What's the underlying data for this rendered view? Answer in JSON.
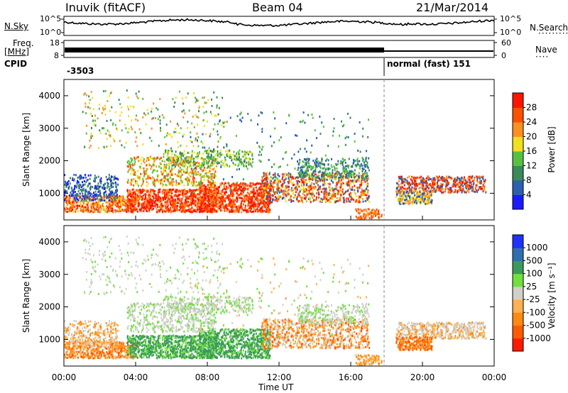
{
  "header": {
    "station": "Inuvik (fitACF)",
    "beam": "Beam 04",
    "date": "21/Mar/2014"
  },
  "left_labels": {
    "nsky": "N.Sky",
    "freq": "Freq.",
    "freq_unit": "[MHz]",
    "cpid": "CPID"
  },
  "right_labels": {
    "nsearch": "N.Search",
    "nave": "Nave"
  },
  "cpid_text": {
    "left": "-3503",
    "right": "normal (fast) 151"
  },
  "colors": {
    "power_scale": [
      "#1a1aff",
      "#2b5fb0",
      "#3a8a5a",
      "#58c040",
      "#f0e020",
      "#ff9020",
      "#ff5000",
      "#ff1500"
    ],
    "velocity_scale": [
      "#ff1a00",
      "#ff5a00",
      "#ff8a10",
      "#ffb050",
      "#d0d0c8",
      "#70e040",
      "#3a9a5a",
      "#2f6fb0",
      "#2030ff"
    ]
  },
  "chart_data": [
    {
      "type": "line",
      "name": "noise",
      "ylabels": [
        "10^5",
        "10^0"
      ],
      "right_ylabels": [
        "10^5",
        "10^0"
      ],
      "left_label": "N.Sky",
      "right_label": "N.Search"
    },
    {
      "type": "line",
      "name": "frequency",
      "left_ticks": [
        "18",
        "8"
      ],
      "right_ticks": [
        "60",
        "0"
      ],
      "freq_mhz": 10.8
    },
    {
      "type": "heatmap",
      "name": "power",
      "ylabel": "Slant Range [km]",
      "y_ticks": [
        1000,
        2000,
        3000,
        4000
      ],
      "x_ticks": [
        "00:00",
        "04:00",
        "08:00",
        "12:00",
        "16:00",
        "20:00",
        "00:00"
      ],
      "colorbar_label": "Power [dB]",
      "colorbar_ticks": [
        "4",
        "8",
        "12",
        "16",
        "20",
        "24",
        "28"
      ],
      "xlim": [
        0,
        24
      ],
      "ylim": [
        180,
        4500
      ]
    },
    {
      "type": "heatmap",
      "name": "velocity",
      "ylabel": "Slant Range [km]",
      "y_ticks": [
        1000,
        2000,
        3000,
        4000
      ],
      "x_ticks": [
        "00:00",
        "04:00",
        "08:00",
        "12:00",
        "16:00",
        "20:00",
        "00:00"
      ],
      "xlabel": "Time UT",
      "colorbar_label": "Velocity [m s⁻¹]",
      "colorbar_ticks": [
        "1000",
        "500",
        "100",
        "25",
        "-25",
        "-100",
        "-500",
        "-1000"
      ],
      "xlim": [
        0,
        24
      ],
      "ylim": [
        180,
        4500
      ]
    }
  ]
}
